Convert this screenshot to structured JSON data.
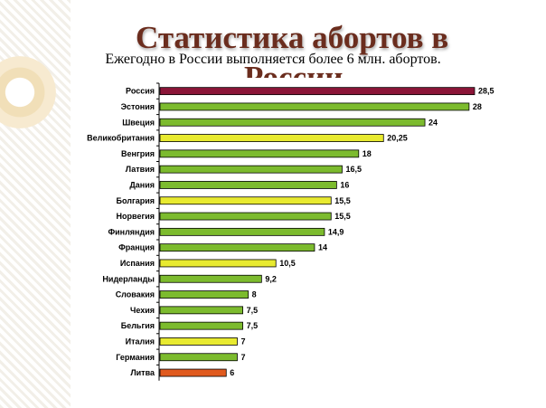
{
  "title_line1": "Статистика абортов в",
  "title_line2": "России",
  "subtitle": "Ежегодно в России выполняется более 6 млн. абортов.",
  "chart_data": {
    "type": "bar",
    "orientation": "horizontal",
    "title": "Статистика абортов в России",
    "categories": [
      "Россия",
      "Эстония",
      "Швеция",
      "Великобритания",
      "Венгрия",
      "Латвия",
      "Дания",
      "Болгария",
      "Норвегия",
      "Финляндия",
      "Франция",
      "Испания",
      "Нидерланды",
      "Словакия",
      "Чехия",
      "Бельгия",
      "Италия",
      "Германия",
      "Литва"
    ],
    "values": [
      28.5,
      28,
      24,
      20.25,
      18,
      16.5,
      16,
      15.5,
      15.5,
      14.9,
      14,
      10.5,
      9.2,
      8,
      7.5,
      7.5,
      7,
      7,
      6
    ],
    "value_labels": [
      "28,5",
      "28",
      "24",
      "20,25",
      "18",
      "16,5",
      "16",
      "15,5",
      "15,5",
      "14,9",
      "14",
      "10,5",
      "9,2",
      "8",
      "7,5",
      "7,5",
      "7",
      "7",
      "6"
    ],
    "bar_colors": [
      "#8b1538",
      "#7cbb2e",
      "#7cbb2e",
      "#e8ea30",
      "#7cbb2e",
      "#7cbb2e",
      "#7cbb2e",
      "#e8ea30",
      "#7cbb2e",
      "#7cbb2e",
      "#7cbb2e",
      "#e8ea30",
      "#7cbb2e",
      "#7cbb2e",
      "#7cbb2e",
      "#7cbb2e",
      "#e8ea30",
      "#7cbb2e",
      "#e05a1e"
    ],
    "xlim": [
      0,
      28.5
    ],
    "grid": false,
    "legend": "none"
  }
}
